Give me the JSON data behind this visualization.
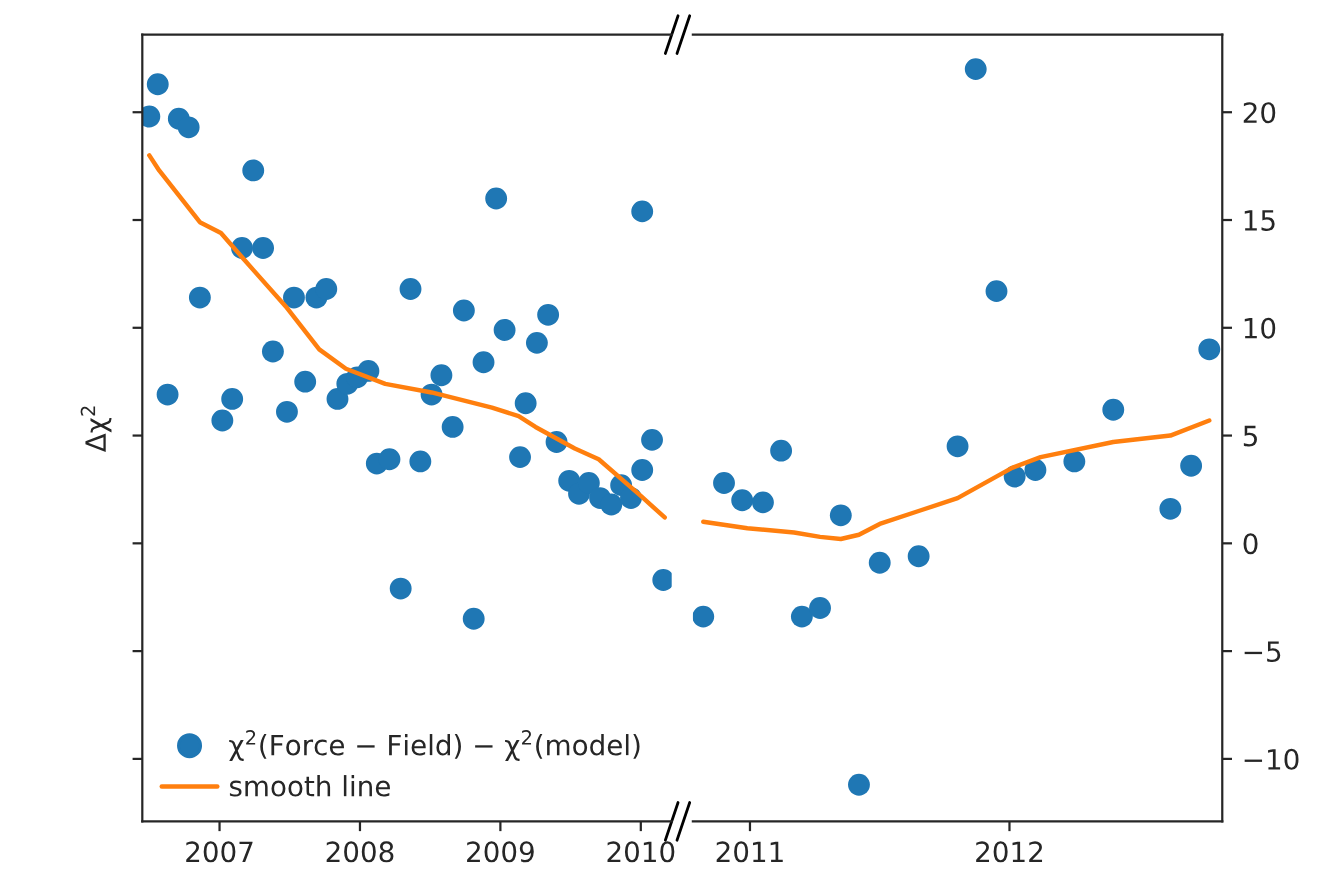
{
  "chart_data": [
    {
      "type": "scatter",
      "ylabel": "Δχ$^{2}$",
      "xlim": [
        2006.45,
        2010.22
      ],
      "xticks": [
        2007,
        2008,
        2009,
        2010
      ],
      "ylim": [
        -12.9,
        23.6
      ],
      "yticks": [
        -10,
        -5,
        0,
        5,
        10,
        15,
        20
      ],
      "tick_labels": "x",
      "legend": "bottom left",
      "series": [
        {
          "name": "χ$^{2}$(Force − Field) − χ$^{2}$(model)",
          "marker": "circle",
          "color": "#1f77b4",
          "x": [
            2006.5,
            2006.56,
            2006.63,
            2006.71,
            2006.78,
            2006.86,
            2007.02,
            2007.09,
            2007.16,
            2007.24,
            2007.31,
            2007.38,
            2007.48,
            2007.53,
            2007.61,
            2007.69,
            2007.76,
            2007.84,
            2007.91,
            2007.98,
            2008.06,
            2008.12,
            2008.21,
            2008.29,
            2008.36,
            2008.43,
            2008.51,
            2008.58,
            2008.66,
            2008.74,
            2008.81,
            2008.88,
            2008.97,
            2009.03,
            2009.14,
            2009.18,
            2009.26,
            2009.34,
            2009.4,
            2009.49,
            2009.56,
            2009.63,
            2009.71,
            2009.79,
            2009.86,
            2009.93,
            2010.01,
            2010.01,
            2010.08,
            2010.16
          ],
          "values": [
            19.8,
            21.3,
            6.9,
            19.7,
            19.3,
            11.4,
            5.7,
            6.7,
            13.7,
            17.3,
            13.7,
            8.9,
            6.1,
            11.4,
            7.5,
            11.4,
            11.8,
            6.7,
            7.4,
            7.7,
            8.0,
            3.7,
            3.9,
            -2.1,
            11.8,
            3.8,
            6.9,
            7.8,
            5.4,
            10.8,
            -3.5,
            8.4,
            16.0,
            9.9,
            4.0,
            6.5,
            9.3,
            10.6,
            4.7,
            2.9,
            2.3,
            2.8,
            2.1,
            1.8,
            2.7,
            2.1,
            15.4,
            3.4,
            4.8,
            -1.7
          ]
        },
        {
          "name": "smooth line",
          "type": "line",
          "color": "#ff7f0e",
          "x": [
            2006.5,
            2006.57,
            2006.86,
            2007.01,
            2007.17,
            2007.47,
            2007.71,
            2007.9,
            2008.18,
            2008.51,
            2008.94,
            2009.13,
            2009.25,
            2009.53,
            2009.7,
            2010.0,
            2010.17
          ],
          "values": [
            18.0,
            17.3,
            14.9,
            14.4,
            13.2,
            11.0,
            9.0,
            8.1,
            7.4,
            7.0,
            6.3,
            5.9,
            5.4,
            4.4,
            3.9,
            2.2,
            1.2
          ]
        }
      ]
    },
    {
      "type": "scatter",
      "xlim": [
        2010.78,
        2012.82
      ],
      "xticks": [
        2011,
        2012
      ],
      "y2lim": [
        -12.9,
        23.6
      ],
      "y2ticks": [
        -10,
        -5,
        0,
        5,
        10,
        15,
        20
      ],
      "series": [
        {
          "axis": "y2",
          "marker": "circle",
          "color": "#1f77b4",
          "x": [
            2010.82,
            2010.9,
            2010.97,
            2011.05,
            2011.12,
            2011.2,
            2011.27,
            2011.35,
            2011.42,
            2011.5,
            2011.65,
            2011.8,
            2011.87,
            2011.95,
            2012.02,
            2012.1,
            2012.25,
            2012.4,
            2012.62,
            2012.7,
            2012.77
          ],
          "values": [
            -3.4,
            2.8,
            2.0,
            1.9,
            4.3,
            -3.4,
            -3.0,
            1.3,
            -11.2,
            -0.9,
            -0.6,
            4.5,
            22.0,
            11.7,
            3.1,
            3.4,
            3.8,
            6.2,
            1.6,
            3.6,
            9.0
          ]
        },
        {
          "type": "line",
          "axis": "y2",
          "color": "#ff7f0e",
          "x": [
            2010.82,
            2010.99,
            2011.17,
            2011.27,
            2011.35,
            2011.42,
            2011.5,
            2011.65,
            2011.8,
            2012.01,
            2012.12,
            2012.4,
            2012.62,
            2012.77
          ],
          "values": [
            1.0,
            0.7,
            0.5,
            0.3,
            0.2,
            0.4,
            0.9,
            1.5,
            2.1,
            3.5,
            4.0,
            4.7,
            5.0,
            5.7
          ]
        }
      ]
    }
  ]
}
